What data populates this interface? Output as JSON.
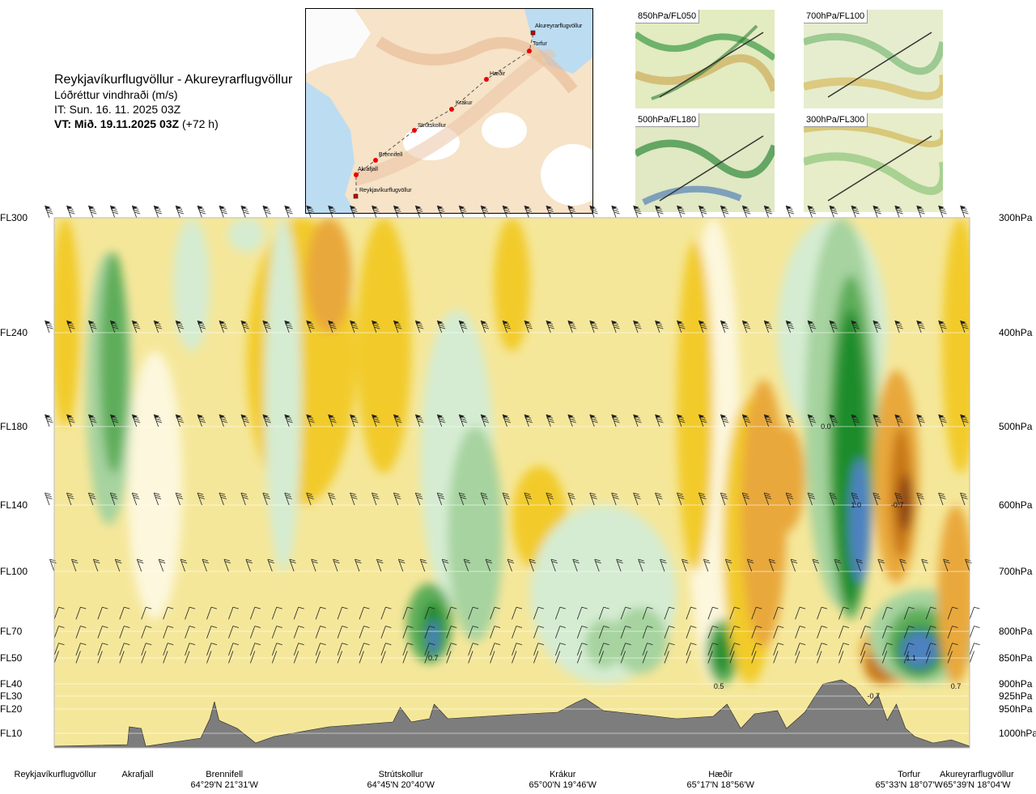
{
  "header": {
    "route": "Reykjavíkurflugvöllur - Akureyrarflugvöllur",
    "quantity": "Lóðréttur vindhraði (m/s)",
    "issue_time": "IT: Sun. 16. 11. 2025 03Z",
    "valid_time_bold": "VT: Mið. 19.11.2025 03Z",
    "valid_time_lead": "(+72 h)"
  },
  "route_map": {
    "waypoints": [
      "Akureyrarflugvöllur",
      "Torfur",
      "Hæðir",
      "Krákur",
      "Strútskollur",
      "Brennifell",
      "Akrafjall",
      "Reykjavíkurflugvöllur"
    ]
  },
  "level_maps": [
    {
      "label": "850hPa/FL050"
    },
    {
      "label": "700hPa/FL100"
    },
    {
      "label": "500hPa/FL180"
    },
    {
      "label": "300hPa/FL300"
    }
  ],
  "chart_data": {
    "type": "heatmap",
    "title": "Lóðréttur vindhraði (m/s)",
    "flight_levels": [
      {
        "label": "FL300",
        "hpa": 300
      },
      {
        "label": "FL240",
        "hpa": 400
      },
      {
        "label": "FL180",
        "hpa": 500
      },
      {
        "label": "FL140",
        "hpa": 600
      },
      {
        "label": "FL100",
        "hpa": 700
      },
      {
        "label": "FL70",
        "hpa": 800
      },
      {
        "label": "FL50",
        "hpa": 850
      },
      {
        "label": "FL40",
        "hpa": 900
      },
      {
        "label": "FL30",
        "hpa": 925
      },
      {
        "label": "FL20",
        "hpa": 950
      },
      {
        "label": "FL10",
        "hpa": 1000
      }
    ],
    "pressure_labels": [
      "300hPa",
      "400hPa",
      "500hPa",
      "600hPa",
      "700hPa",
      "800hPa",
      "850hPa",
      "900hPa",
      "925hPa",
      "950hPa",
      "1000hPa"
    ],
    "cross_section_points": [
      {
        "name": "Reykjavíkurflugvöllur",
        "coord": "",
        "pos": 0.0
      },
      {
        "name": "Akrafjall",
        "coord": "",
        "pos": 0.09
      },
      {
        "name": "Brennifell",
        "coord": "64°29'N 21°31'W",
        "pos": 0.186
      },
      {
        "name": "Strútskollur",
        "coord": "64°45'N 20°40'W",
        "pos": 0.379
      },
      {
        "name": "Krákur",
        "coord": "65°00'N 19°46'W",
        "pos": 0.573
      },
      {
        "name": "Hæðir",
        "coord": "65°17'N 18°56'W",
        "pos": 0.757
      },
      {
        "name": "Torfur",
        "coord": "65°33'N 18°07'W",
        "pos": 0.944
      },
      {
        "name": "Akureyrarflugvöllur",
        "coord": "65°39'N 18°04'W",
        "pos": 1.0
      }
    ],
    "value_labels": [
      {
        "text": "0.7",
        "pos": 0.414,
        "hpa": 850
      },
      {
        "text": "0.0",
        "pos": 0.843,
        "hpa": 500
      },
      {
        "text": "1.0",
        "pos": 0.876,
        "hpa": 600
      },
      {
        "text": "-0.7",
        "pos": 0.921,
        "hpa": 600
      },
      {
        "text": "1.1",
        "pos": 0.936,
        "hpa": 850
      },
      {
        "text": "0.5",
        "pos": 0.726,
        "hpa": 905
      },
      {
        "text": "-0.7",
        "pos": 0.895,
        "hpa": 925
      },
      {
        "text": "0.7",
        "pos": 0.985,
        "hpa": 905
      }
    ],
    "colors": {
      "strong_down": "#8a3f14",
      "down2": "#c87818",
      "down1": "#e9a83a",
      "weak_down": "#f2cb2a",
      "weak_down2": "#f5e79a",
      "neutral": "#fdf7dd",
      "weak_up": "#d5ecd2",
      "up1": "#a6d39f",
      "up2": "#5dad5a",
      "up3": "#1e8c2c",
      "strong_up": "#4e82c0",
      "extreme_up": "#6f5ee0",
      "terrain": "#7d7d7d"
    }
  }
}
